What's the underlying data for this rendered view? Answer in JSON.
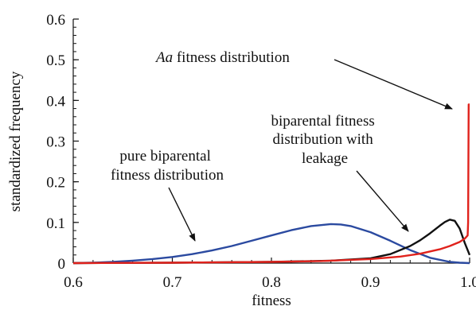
{
  "chart_data": {
    "type": "line",
    "xlabel": "fitness",
    "ylabel": "standardized  frequency",
    "xlim": [
      0.6,
      1.0
    ],
    "ylim": [
      0,
      0.6
    ],
    "xticks": [
      "0.6",
      "0.7",
      "0.8",
      "0.9",
      "1.0"
    ],
    "yticks": [
      "0",
      "0.1",
      "0.2",
      "0.3",
      "0.4",
      "0.5",
      "0.6"
    ],
    "series": [
      {
        "color": "#2b4aa0",
        "x": [
          0.6,
          0.62,
          0.64,
          0.66,
          0.68,
          0.7,
          0.72,
          0.74,
          0.76,
          0.78,
          0.8,
          0.82,
          0.84,
          0.86,
          0.87,
          0.88,
          0.9,
          0.92,
          0.94,
          0.96,
          0.98,
          0.99,
          1.0
        ],
        "y": [
          0.0,
          0.001,
          0.003,
          0.006,
          0.01,
          0.015,
          0.022,
          0.031,
          0.042,
          0.055,
          0.068,
          0.081,
          0.091,
          0.096,
          0.095,
          0.091,
          0.076,
          0.055,
          0.032,
          0.013,
          0.003,
          0.001,
          0.0
        ]
      },
      {
        "color": "#111111",
        "x": [
          0.6,
          0.7,
          0.8,
          0.86,
          0.9,
          0.92,
          0.94,
          0.95,
          0.96,
          0.97,
          0.975,
          0.98,
          0.985,
          0.99,
          0.995,
          1.0
        ],
        "y": [
          0.0,
          0.001,
          0.003,
          0.006,
          0.012,
          0.022,
          0.042,
          0.056,
          0.073,
          0.092,
          0.101,
          0.107,
          0.104,
          0.085,
          0.05,
          0.02
        ]
      },
      {
        "color": "#e0221c",
        "x": [
          0.6,
          0.7,
          0.8,
          0.85,
          0.9,
          0.93,
          0.95,
          0.97,
          0.98,
          0.99,
          0.995,
          0.998,
          0.9985,
          0.999,
          1.0
        ],
        "y": [
          0.0,
          0.001,
          0.003,
          0.005,
          0.01,
          0.016,
          0.023,
          0.034,
          0.042,
          0.052,
          0.06,
          0.068,
          0.1,
          0.39,
          0.39
        ]
      }
    ],
    "annotations": [
      {
        "italic": "Aa",
        "text": " fitness distribution",
        "target": [
          0.993,
          0.385
        ]
      },
      {
        "lines": [
          "biparental fitness",
          "distribution with",
          "leakage"
        ],
        "target": [
          0.95,
          0.045
        ]
      },
      {
        "lines": [
          "pure biparental",
          "fitness distribution"
        ],
        "target": [
          0.74,
          0.024
        ]
      }
    ]
  }
}
